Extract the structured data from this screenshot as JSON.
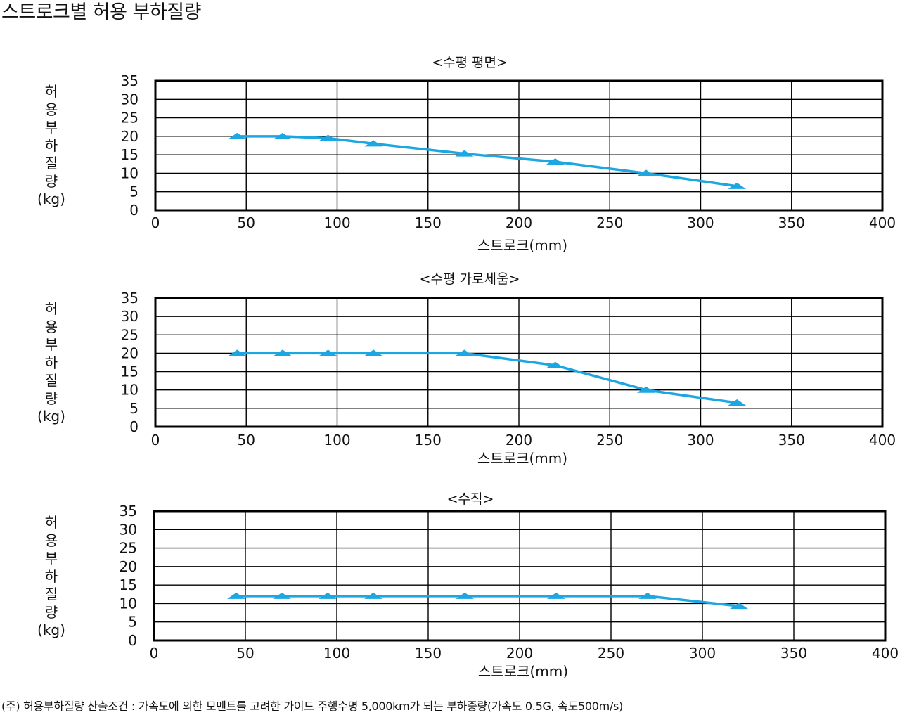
{
  "page": {
    "title": "스트로크별 허용 부하질량",
    "footnote": "(주) 허용부하질량 산출조건 : 가속도에 의한 모멘트를 고려한 가이드 주행수명 5,000km가 되는 부하중량(가속도 0.5G, 속도500m/s)"
  },
  "colors": {
    "series": "#1ca6e2",
    "grid": "#000000"
  },
  "chart_data": [
    {
      "type": "line",
      "title": "<수평 평면>",
      "xlabel": "스트로크(mm)",
      "ylabel_chars": [
        "허",
        "용",
        "부",
        "하",
        "질",
        "량",
        "(kg)"
      ],
      "xlim": [
        0,
        400
      ],
      "ylim": [
        0,
        35
      ],
      "xticks": [
        0,
        50,
        100,
        150,
        200,
        250,
        300,
        350,
        400
      ],
      "yticks": [
        0,
        5,
        10,
        15,
        20,
        25,
        30,
        35
      ],
      "grid": true,
      "marker": "triangle",
      "x": [
        45,
        70,
        95,
        120,
        170,
        220,
        270,
        320
      ],
      "y": [
        20,
        20,
        19.5,
        18,
        15.3,
        13.1,
        10,
        6.5
      ]
    },
    {
      "type": "line",
      "title": "<수평 가로세움>",
      "xlabel": "스트로크(mm)",
      "ylabel_chars": [
        "허",
        "용",
        "부",
        "하",
        "질",
        "량",
        "(kg)"
      ],
      "xlim": [
        0,
        400
      ],
      "ylim": [
        0,
        35
      ],
      "xticks": [
        0,
        50,
        100,
        150,
        200,
        250,
        300,
        350,
        400
      ],
      "yticks": [
        0,
        5,
        10,
        15,
        20,
        25,
        30,
        35
      ],
      "grid": true,
      "marker": "triangle",
      "x": [
        45,
        70,
        95,
        120,
        170,
        220,
        270,
        320
      ],
      "y": [
        20,
        20,
        20,
        20,
        20,
        16.7,
        10,
        6.5
      ]
    },
    {
      "type": "line",
      "title": "<수직>",
      "xlabel": "스트로크(mm)",
      "ylabel_chars": [
        "허",
        "용",
        "부",
        "하",
        "질",
        "량",
        "(kg)"
      ],
      "xlim": [
        0,
        400
      ],
      "ylim": [
        0,
        35
      ],
      "xticks": [
        0,
        50,
        100,
        150,
        200,
        250,
        300,
        350,
        400
      ],
      "yticks": [
        0,
        5,
        10,
        15,
        20,
        25,
        30,
        35
      ],
      "grid": true,
      "marker": "triangle",
      "x": [
        45,
        70,
        95,
        120,
        170,
        220,
        270,
        320
      ],
      "y": [
        12,
        12,
        12,
        12,
        12,
        12,
        12,
        9.3
      ]
    }
  ]
}
